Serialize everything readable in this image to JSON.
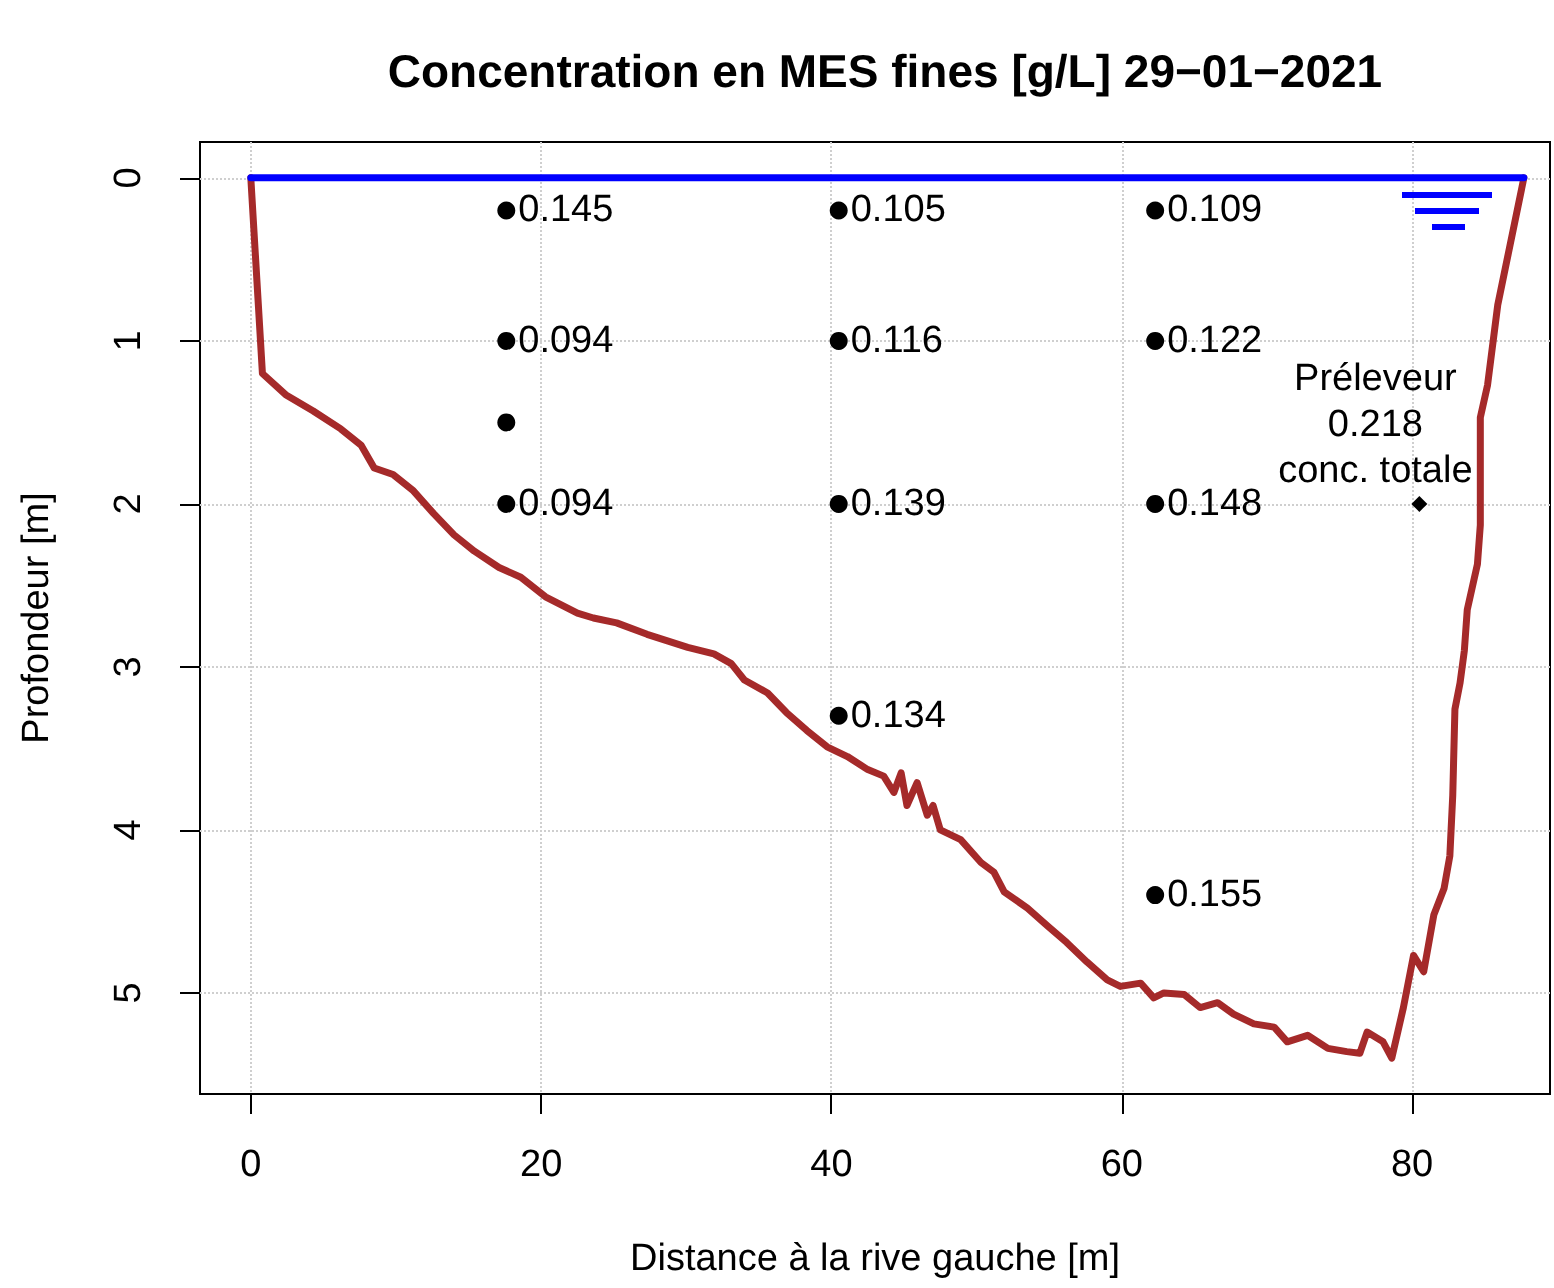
{
  "chart_data": {
    "type": "line",
    "title": "Concentration en MES fines [g/L] 29−01−2021",
    "xlabel": "Distance à la rive gauche [m]",
    "ylabel": "Profondeur [m]",
    "xlim": [
      -3.5,
      89.5
    ],
    "xticks": [
      0,
      20,
      40,
      60,
      80
    ],
    "ylim": [
      5.62,
      -0.22
    ],
    "yticks": [
      0,
      1,
      2,
      3,
      4,
      5
    ],
    "grid": true,
    "series": [
      {
        "color": "#a52a2a",
        "marker": "none",
        "x": [
          0,
          0.8,
          2.4,
          4.3,
          6.2,
          7.6,
          8.5,
          9.8,
          11.2,
          12.6,
          14.0,
          15.4,
          17.1,
          18.6,
          20.3,
          22.5,
          23.6,
          25.2,
          27.3,
          28.7,
          30.1,
          31.9,
          33.1,
          34.0,
          35.6,
          36.9,
          38.3,
          39.7,
          41.1,
          42.5,
          43.6,
          44.3,
          44.8,
          45.2,
          45.9,
          46.6,
          47.0,
          47.5,
          48.9,
          50.3,
          51.2,
          51.9,
          53.5,
          54.9,
          56.2,
          57.6,
          59.0,
          59.9,
          61.3,
          62.2,
          62.9,
          64.3,
          65.4,
          66.6,
          67.7,
          69.1,
          70.5,
          71.4,
          72.8,
          74.2,
          75.5,
          76.4,
          76.9,
          78.0,
          78.6,
          79.4,
          80.1,
          80.8,
          81.5,
          82.2,
          82.6,
          82.8,
          82.95,
          83.3,
          83.6,
          83.8,
          84.5,
          84.7,
          84.7,
          85.2,
          85.9,
          87.7
        ],
        "values": [
          0,
          1.2,
          1.33,
          1.43,
          1.54,
          1.64,
          1.78,
          1.82,
          1.92,
          2.06,
          2.19,
          2.29,
          2.39,
          2.45,
          2.57,
          2.67,
          2.7,
          2.73,
          2.8,
          2.84,
          2.88,
          2.92,
          2.98,
          3.08,
          3.16,
          3.28,
          3.39,
          3.49,
          3.55,
          3.63,
          3.67,
          3.77,
          3.65,
          3.85,
          3.71,
          3.91,
          3.85,
          4.0,
          4.06,
          4.2,
          4.26,
          4.38,
          4.48,
          4.59,
          4.69,
          4.81,
          4.92,
          4.96,
          4.94,
          5.03,
          5.0,
          5.01,
          5.09,
          5.06,
          5.13,
          5.19,
          5.21,
          5.3,
          5.26,
          5.34,
          5.36,
          5.37,
          5.24,
          5.3,
          5.4,
          5.09,
          4.77,
          4.87,
          4.52,
          4.36,
          4.16,
          3.79,
          3.26,
          3.1,
          2.9,
          2.65,
          2.37,
          2.13,
          1.47,
          1.27,
          0.78,
          0
        ]
      },
      {
        "color": "#0000ff",
        "marker": "none",
        "x": [
          0,
          87.7
        ],
        "values": [
          0,
          0
        ]
      },
      {
        "type": "scatter",
        "color": "#000000",
        "marker": "circle",
        "x": [
          17.6,
          17.6,
          17.6,
          17.6,
          40.5,
          40.5,
          40.5,
          40.5,
          62.3,
          62.3,
          62.3,
          62.3
        ],
        "values": [
          0.2,
          1,
          1.5,
          2,
          0.2,
          1,
          2,
          3.3,
          0.2,
          1,
          2,
          4.4
        ]
      },
      {
        "type": "scatter",
        "color": "#000000",
        "marker": "diamond",
        "x": [
          80.5
        ],
        "values": [
          2
        ]
      }
    ],
    "annotations": [
      {
        "text": "0.145",
        "x": 17.6,
        "y": 0.2
      },
      {
        "text": "0.094",
        "x": 17.6,
        "y": 1
      },
      {
        "text": "0.094",
        "x": 17.6,
        "y": 2
      },
      {
        "text": "0.105",
        "x": 40.5,
        "y": 0.2
      },
      {
        "text": "0.116",
        "x": 40.5,
        "y": 1
      },
      {
        "text": "0.139",
        "x": 40.5,
        "y": 2
      },
      {
        "text": "0.134",
        "x": 40.5,
        "y": 3.3
      },
      {
        "text": "0.109",
        "x": 62.3,
        "y": 0.2
      },
      {
        "text": "0.122",
        "x": 62.3,
        "y": 1
      },
      {
        "text": "0.148",
        "x": 62.3,
        "y": 2
      },
      {
        "text": "0.155",
        "x": 62.3,
        "y": 4.4
      },
      {
        "text": "Préleveur\n0.218\nconc. totale",
        "x": 80.5,
        "y": 2
      }
    ]
  }
}
